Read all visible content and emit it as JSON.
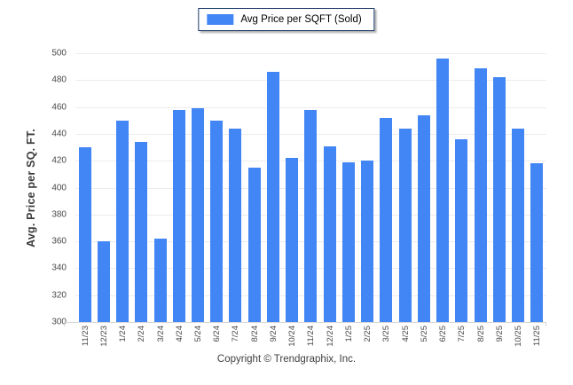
{
  "legend": {
    "label": "Avg Price per SQFT (Sold)"
  },
  "footer": {
    "text": "Copyright © Trendgraphix, Inc."
  },
  "colors": {
    "bar": "#4285f4",
    "legend_border": "#1b3a68",
    "gridline": "#ececec",
    "axis_line": "#d6d6d6",
    "tick_text": "#4a4a4a",
    "axis_title_text": "#3c3c3c"
  },
  "chart_data": {
    "type": "bar",
    "title": "Avg Price per SQFT (Sold)",
    "xlabel": "",
    "ylabel": "Avg. Price per SQ. FT.",
    "ylim": [
      300,
      500
    ],
    "ytick_step": 20,
    "grid": true,
    "legend_position": "top-center",
    "categories": [
      "11/23",
      "12/23",
      "1/24",
      "2/24",
      "3/24",
      "4/24",
      "5/24",
      "6/24",
      "7/24",
      "8/24",
      "9/24",
      "10/24",
      "11/24",
      "12/24",
      "1/25",
      "2/25",
      "3/25",
      "4/25",
      "5/25",
      "6/25",
      "7/25",
      "8/25",
      "9/25",
      "10/25",
      "11/25"
    ],
    "series": [
      {
        "name": "Avg Price per SQFT (Sold)",
        "values": [
          430,
          360,
          450,
          434,
          362,
          458,
          459,
          450,
          444,
          415,
          486,
          422,
          458,
          431,
          419,
          420,
          452,
          444,
          454,
          496,
          436,
          489,
          482,
          444,
          418
        ]
      }
    ]
  }
}
